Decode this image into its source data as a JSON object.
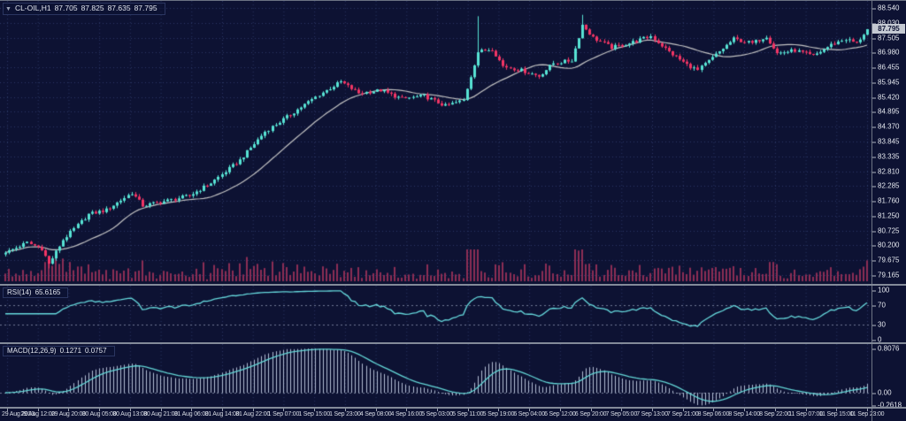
{
  "header": {
    "collapse_arrow": "▼",
    "symbol": "CL-OIL,H1",
    "open": "87.705",
    "high": "87.825",
    "low": "87.635",
    "close": "87.795"
  },
  "price_axis": {
    "labels": [
      "88.540",
      "88.030",
      "87.505",
      "86.980",
      "86.455",
      "85.945",
      "85.420",
      "84.895",
      "84.370",
      "83.845",
      "83.335",
      "82.810",
      "82.285",
      "81.760",
      "81.250",
      "80.725",
      "80.200",
      "79.675",
      "79.165"
    ],
    "current_price": "87.795"
  },
  "time_axis": {
    "labels": [
      "29 Aug 2023",
      "29 Aug 12:00",
      "29 Aug 20:00",
      "30 Aug 05:00",
      "30 Aug 13:00",
      "30 Aug 21:00",
      "31 Aug 06:00",
      "31 Aug 14:00",
      "31 Aug 22:00",
      "1 Sep 07:00",
      "1 Sep 15:00",
      "1 Sep 23:00",
      "4 Sep 08:00",
      "4 Sep 16:00",
      "5 Sep 03:00",
      "5 Sep 11:00",
      "5 Sep 19:00",
      "6 Sep 04:00",
      "6 Sep 12:00",
      "6 Sep 20:00",
      "7 Sep 05:00",
      "7 Sep 13:00",
      "7 Sep 21:00",
      "8 Sep 06:00",
      "8 Sep 14:00",
      "8 Sep 22:00",
      "11 Sep 07:00",
      "11 Sep 15:00",
      "11 Sep 23:00"
    ]
  },
  "rsi_panel": {
    "name": "RSI(14)",
    "value": "65.6165",
    "axis_labels": [
      "100",
      "70",
      "30",
      "0"
    ],
    "levels": [
      70,
      30
    ]
  },
  "macd_panel": {
    "name": "MACD(12,26,9)",
    "value_main": "0.1271",
    "value_signal": "0.0757",
    "axis_labels": [
      "0.8076",
      "0.00",
      "-0.2618"
    ]
  },
  "colors": {
    "background": "#0d1233",
    "grid": "#2a3663",
    "bull_candle": "#57e3d4",
    "bear_candle": "#f23565",
    "ma_line": "#c4c4c4",
    "volume": "#8c2d55",
    "rsi_line": "#66d9dd",
    "rsi_levels": "#6f7894",
    "macd_hist": "#b3bdd4",
    "macd_line": "#63d6d6",
    "separator": "#838a99",
    "axis_text": "#e4e7ee",
    "badge_bg": "#c4c9d2"
  },
  "chart_data": {
    "type": "candlestick",
    "symbol": "CL-OIL",
    "timeframe": "H1",
    "title": "CL-OIL,H1",
    "bars": 240,
    "price_range": [
      79.165,
      88.54
    ],
    "last_ohlc": {
      "open": 87.705,
      "high": 87.825,
      "low": 87.635,
      "close": 87.795
    },
    "close_anchors": [
      [
        0,
        79.95
      ],
      [
        6,
        80.3
      ],
      [
        10,
        80.1
      ],
      [
        12,
        79.55
      ],
      [
        16,
        80.4
      ],
      [
        23,
        81.3
      ],
      [
        28,
        81.45
      ],
      [
        35,
        82.05
      ],
      [
        38,
        81.6
      ],
      [
        44,
        81.75
      ],
      [
        51,
        81.95
      ],
      [
        57,
        82.4
      ],
      [
        65,
        83.2
      ],
      [
        72,
        84.2
      ],
      [
        79,
        84.8
      ],
      [
        87,
        85.5
      ],
      [
        93,
        85.95
      ],
      [
        98,
        85.55
      ],
      [
        104,
        85.65
      ],
      [
        110,
        85.35
      ],
      [
        116,
        85.45
      ],
      [
        122,
        85.1
      ],
      [
        127,
        85.3
      ],
      [
        131,
        87.0
      ],
      [
        135,
        87.1
      ],
      [
        138,
        86.5
      ],
      [
        143,
        86.35
      ],
      [
        148,
        86.15
      ],
      [
        152,
        86.6
      ],
      [
        157,
        86.7
      ],
      [
        160,
        87.95
      ],
      [
        163,
        87.5
      ],
      [
        168,
        87.15
      ],
      [
        173,
        87.3
      ],
      [
        179,
        87.55
      ],
      [
        184,
        87.0
      ],
      [
        189,
        86.55
      ],
      [
        192,
        86.35
      ],
      [
        197,
        86.9
      ],
      [
        202,
        87.45
      ],
      [
        207,
        87.3
      ],
      [
        211,
        87.55
      ],
      [
        214,
        86.95
      ],
      [
        219,
        87.05
      ],
      [
        224,
        86.85
      ],
      [
        229,
        87.25
      ],
      [
        233,
        87.45
      ],
      [
        236,
        87.3
      ],
      [
        239,
        87.795
      ]
    ],
    "wick_high_overrides": [
      [
        131,
        88.25
      ],
      [
        160,
        88.3
      ]
    ],
    "wick_low_overrides": [
      [
        12,
        79.4
      ]
    ],
    "overlays": [
      {
        "name": "moving-average",
        "period": 20
      }
    ],
    "indicators": [
      {
        "name": "RSI",
        "period": 14,
        "last": 65.6165,
        "range": [
          0,
          100
        ],
        "levels": [
          70,
          30
        ]
      },
      {
        "name": "MACD",
        "params": [
          12,
          26,
          9
        ],
        "last_main": 0.1271,
        "last_signal": 0.0757,
        "axis_max": 0.8076,
        "axis_min": -0.2618
      }
    ]
  }
}
